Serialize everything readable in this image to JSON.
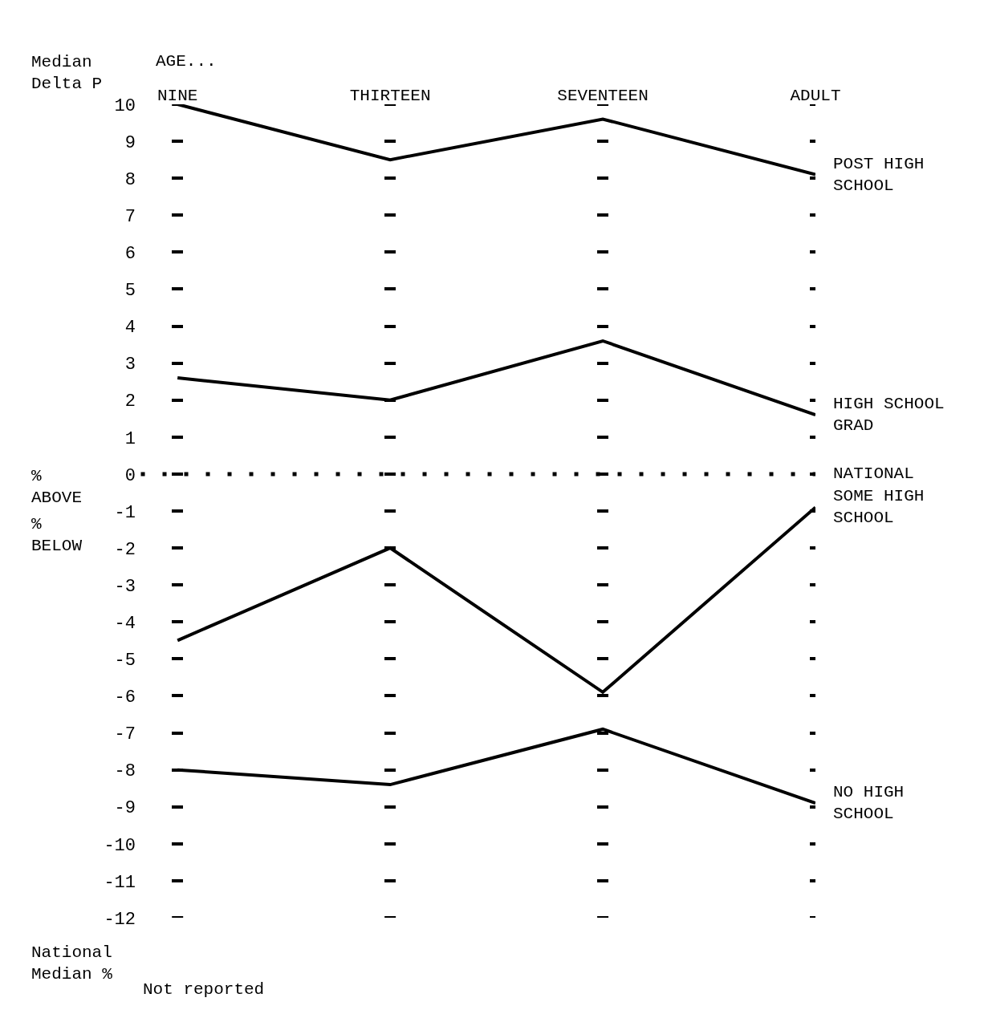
{
  "chart_data": {
    "type": "line",
    "xlabel": "AGE...",
    "ylabel": "Median Delta P",
    "categories": [
      "NINE",
      "THIRTEEN",
      "SEVENTEEN",
      "ADULT"
    ],
    "series": [
      {
        "name": "POST HIGH SCHOOL",
        "color": "#000000",
        "values": [
          10,
          8.5,
          9.6,
          8.1
        ]
      },
      {
        "name": "HIGH SCHOOL GRAD",
        "color": "#000000",
        "values": [
          2.6,
          2.0,
          3.6,
          1.6
        ]
      },
      {
        "name": "SOME HIGH SCHOOL",
        "color": "#000000",
        "values": [
          -4.5,
          -2.0,
          -5.9,
          -0.9
        ]
      },
      {
        "name": "NO HIGH SCHOOL",
        "color": "#000000",
        "values": [
          -8.0,
          -8.4,
          -6.9,
          -8.9
        ]
      }
    ],
    "ylim": [
      -12,
      10
    ],
    "yticks": [
      10,
      9,
      8,
      7,
      6,
      5,
      4,
      3,
      2,
      1,
      0,
      -1,
      -2,
      -3,
      -4,
      -5,
      -6,
      -7,
      -8,
      -9,
      -10,
      -11,
      -12
    ],
    "grid": "y",
    "marker": "none",
    "line_style": "solid",
    "legend": "right",
    "ref_lines": [
      {
        "axis": "y",
        "value": 0,
        "label": "NATIONAL",
        "line_style": "dotted",
        "color": "#000000"
      }
    ],
    "annotations": [
      "% ABOVE",
      "% BELOW",
      "National Median %",
      "Not reported"
    ]
  }
}
